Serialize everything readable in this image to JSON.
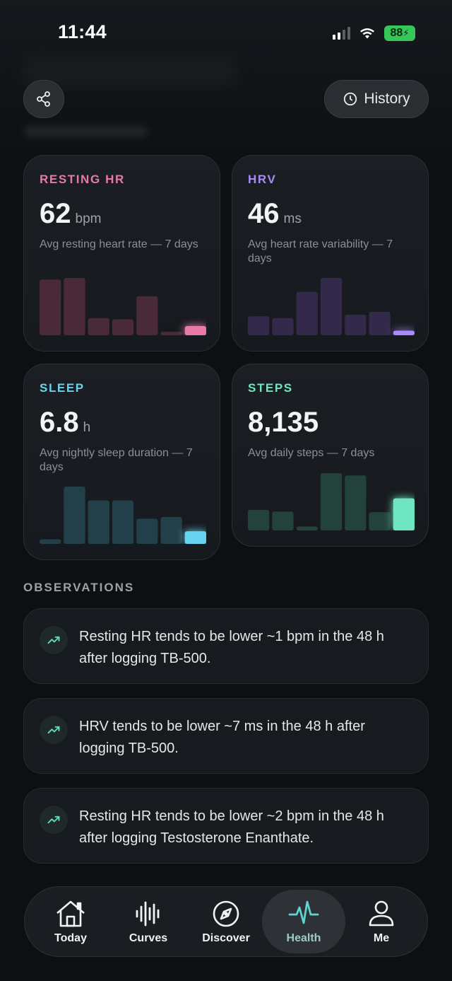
{
  "status": {
    "time": "11:44",
    "battery": "88"
  },
  "header": {
    "history_label": "History"
  },
  "cards": [
    {
      "label": "RESTING HR",
      "value": "62",
      "unit": "bpm",
      "description": "Avg resting heart rate — 7 days",
      "accent": "#e879a8",
      "bar_color": "#4a2a37",
      "bars": [
        0.97,
        1.0,
        0.3,
        0.28,
        0.68,
        0.06,
        0.16
      ]
    },
    {
      "label": "HRV",
      "value": "46",
      "unit": "ms",
      "description": "Avg heart rate variability — 7 days",
      "accent": "#a78bfa",
      "bar_color": "#33294a",
      "bars": [
        0.33,
        0.3,
        0.76,
        1.0,
        0.36,
        0.41,
        0.08
      ]
    },
    {
      "label": "SLEEP",
      "value": "6.8",
      "unit": "h",
      "description": "Avg nightly sleep duration — 7 days",
      "accent": "#67d3f0",
      "bar_color": "#23404a",
      "bars": [
        0.08,
        1.0,
        0.76,
        0.76,
        0.44,
        0.47,
        0.22
      ]
    },
    {
      "label": "STEPS",
      "value": "8,135",
      "unit": "",
      "description": "Avg daily steps — 7 days",
      "accent": "#6ee7c0",
      "bar_color": "#24423c",
      "bars": [
        0.36,
        0.33,
        0.07,
        1.0,
        0.96,
        0.32,
        0.56
      ]
    }
  ],
  "observations": {
    "title": "OBSERVATIONS",
    "items": [
      {
        "text": "Resting HR tends to be lower ~1 bpm in the 48 h after logging TB-500."
      },
      {
        "text": "HRV tends to be lower ~7 ms in the 48 h after logging TB-500."
      },
      {
        "text": "Resting HR tends to be lower ~2 bpm in the 48 h after logging Testosterone Enanthate."
      }
    ]
  },
  "tabs": [
    {
      "label": "Today",
      "icon": "home-icon",
      "active": false
    },
    {
      "label": "Curves",
      "icon": "waveform-icon",
      "active": false
    },
    {
      "label": "Discover",
      "icon": "compass-icon",
      "active": false
    },
    {
      "label": "Health",
      "icon": "heartbeat-icon",
      "active": true
    },
    {
      "label": "Me",
      "icon": "person-icon",
      "active": false
    }
  ]
}
